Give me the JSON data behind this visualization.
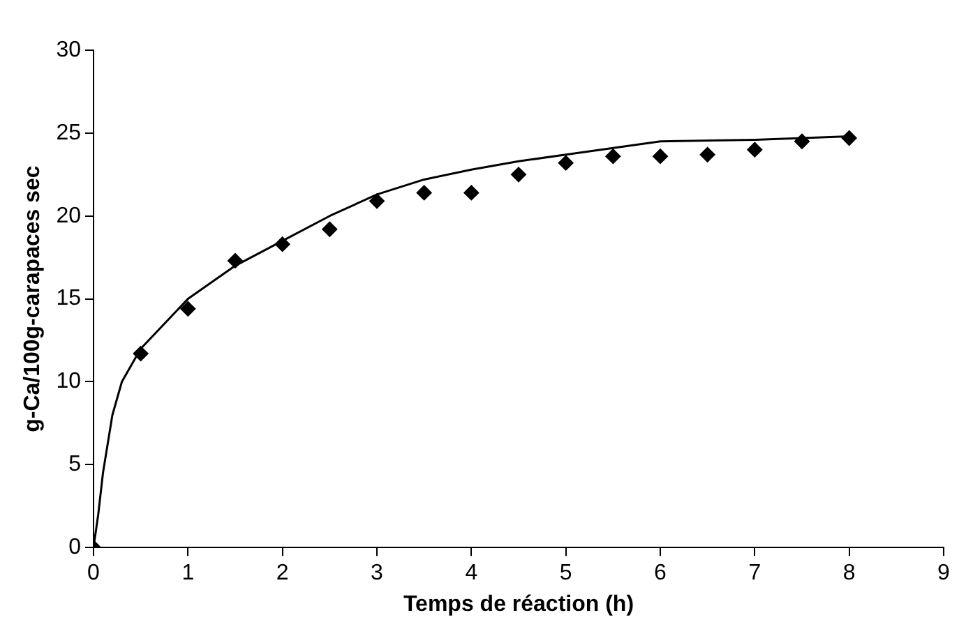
{
  "chart_data": {
    "type": "scatter",
    "xlabel": "Temps de réaction (h)",
    "ylabel": "g-Ca/100g-carapaces sec",
    "xlim": [
      0,
      9
    ],
    "xticks": [
      0,
      1,
      2,
      3,
      4,
      5,
      6,
      7,
      8,
      9
    ],
    "ylim": [
      0,
      30
    ],
    "yticks": [
      0,
      5,
      10,
      15,
      20,
      25,
      30
    ],
    "grid": false,
    "legend": false,
    "series": [
      {
        "marker": "diamond",
        "color": "#000000",
        "x": [
          0,
          0.5,
          1,
          1.5,
          2,
          2.5,
          3,
          3.5,
          4,
          4.5,
          5,
          5.5,
          6,
          6.5,
          7,
          7.5,
          8
        ],
        "values": [
          0,
          11.7,
          14.4,
          17.3,
          18.3,
          19.2,
          20.9,
          21.4,
          21.4,
          22.5,
          23.2,
          23.6,
          23.6,
          23.7,
          24.0,
          24.5,
          24.7
        ]
      },
      {
        "type": "line",
        "marker": "none",
        "line_style": "solid",
        "color": "#000000",
        "x": [
          0,
          0.05,
          0.1,
          0.2,
          0.3,
          0.5,
          1,
          1.5,
          2,
          2.5,
          3,
          3.5,
          4,
          4.5,
          5,
          5.5,
          6,
          7,
          8
        ],
        "values": [
          0,
          2,
          4.5,
          8,
          10,
          12,
          15,
          17,
          18.5,
          20,
          21.3,
          22.2,
          22.8,
          23.3,
          23.7,
          24.1,
          24.5,
          24.6,
          24.8
        ]
      }
    ]
  }
}
